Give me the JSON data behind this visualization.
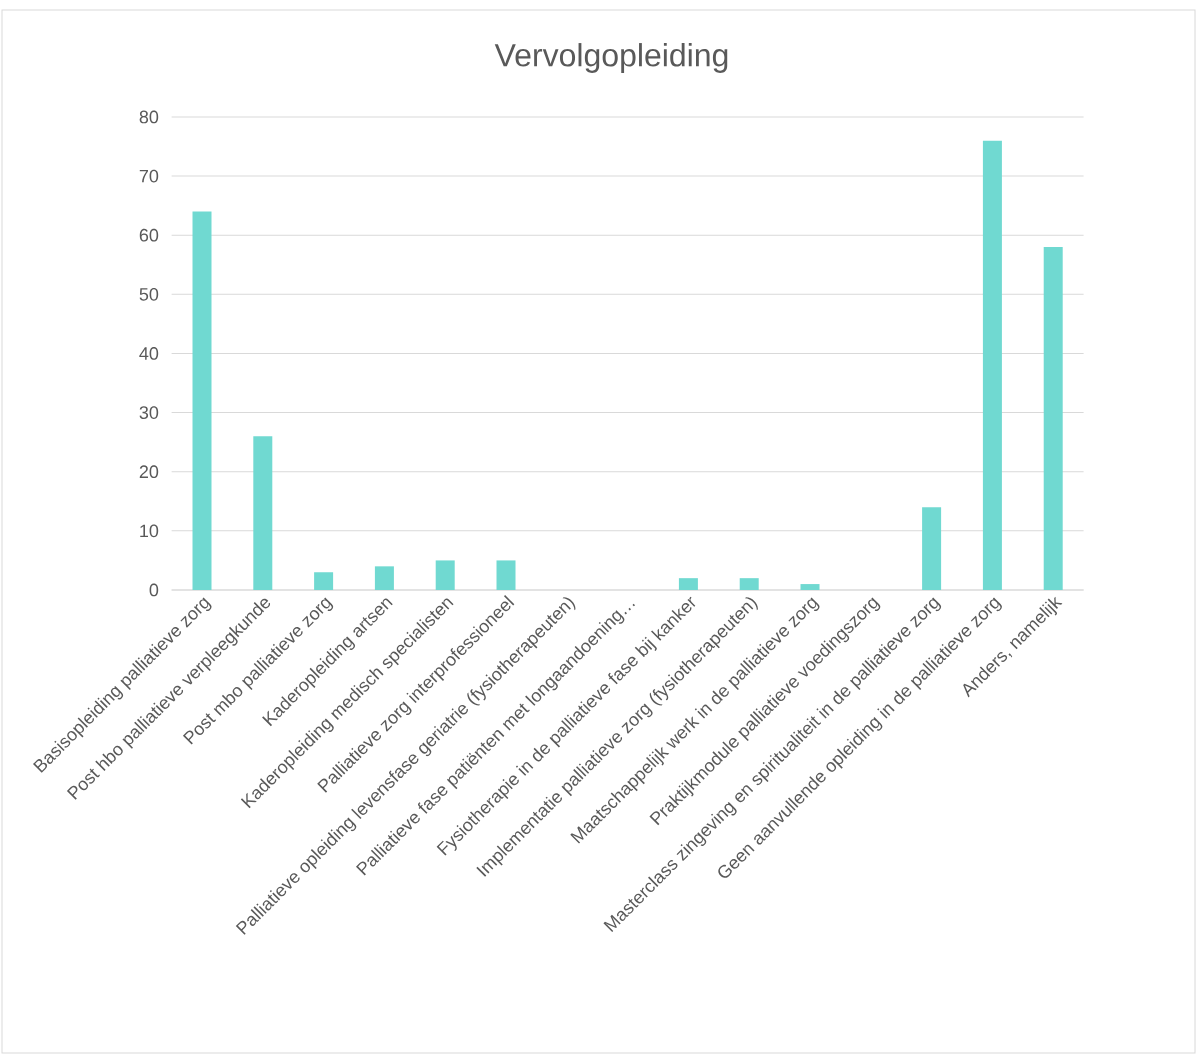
{
  "chart_data": {
    "type": "bar",
    "title": "Vervolgopleiding",
    "categories": [
      "Basisopleiding palliatieve zorg",
      "Post hbo palliatieve verpleegkunde",
      "Post mbo palliatieve zorg",
      "Kaderopleiding artsen",
      "Kaderopleiding medisch specialisten",
      "Palliatieve zorg interprofessioneel",
      "Palliatieve opleiding levensfase geriatrie (fysiotherapeuten)",
      "Palliatieve fase patiënten met longaandoening…",
      "Fysiotherapie in de palliatieve fase bij kanker",
      "Implementatie palliatieve zorg (fysiotherapeuten)",
      "Maatschappelijk werk in de palliatieve zorg",
      "Praktijkmodule palliatieve voedingszorg",
      "Masterclass zingeving en spiritualiteit in de palliatieve zorg",
      "Geen aanvullende opleiding in de palliatieve zorg",
      "Anders, namelijk"
    ],
    "values": [
      64,
      26,
      3,
      4,
      5,
      5,
      0,
      0,
      2,
      2,
      1,
      0,
      14,
      76,
      58
    ],
    "color": "#70d9d1",
    "ylim": [
      0,
      80
    ],
    "yticks": [
      0,
      10,
      20,
      30,
      40,
      50,
      60,
      70,
      80
    ],
    "grid": "y"
  }
}
